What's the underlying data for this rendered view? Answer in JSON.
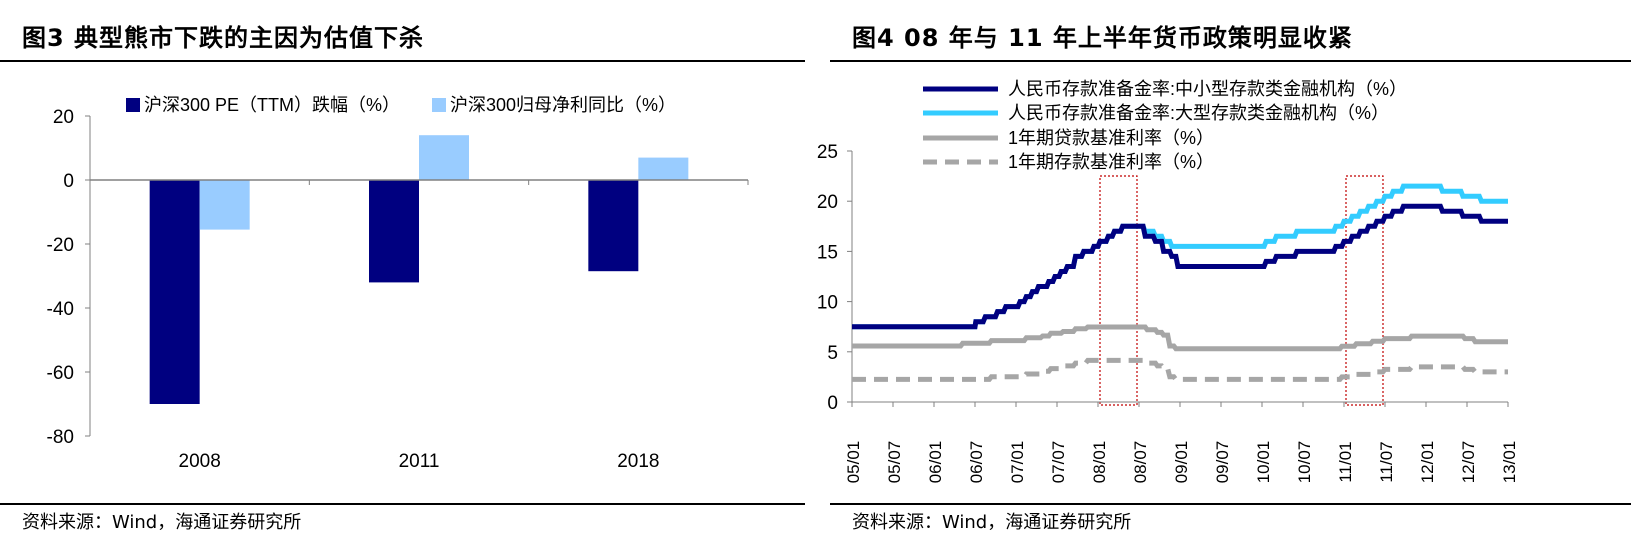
{
  "left": {
    "title": "图3  典型熊市下跌的主因为估值下杀",
    "source": "资料来源：Wind，海通证券研究所",
    "chart_data": {
      "type": "bar",
      "categories": [
        "2008",
        "2011",
        "2018"
      ],
      "series": [
        {
          "name": "沪深300 PE（TTM）跌幅（%）",
          "color": "#000080",
          "values": [
            -70,
            -32,
            -28.5
          ]
        },
        {
          "name": "沪深300归母净利同比（%）",
          "color": "#99CCFF",
          "values": [
            -15.5,
            14,
            7
          ]
        }
      ],
      "yticks": [
        20,
        0,
        -20,
        -40,
        -60,
        -80
      ],
      "ylim": [
        -80,
        20
      ]
    }
  },
  "right": {
    "title": "图4  08 年与 11 年上半年货币政策明显收紧",
    "source": "资料来源：Wind，海通证券研究所",
    "chart_data": {
      "type": "line",
      "xtick_labels": [
        "05/01",
        "05/07",
        "06/01",
        "06/07",
        "07/01",
        "07/07",
        "08/01",
        "08/07",
        "09/01",
        "09/07",
        "10/01",
        "10/07",
        "11/01",
        "11/07",
        "12/01",
        "12/07",
        "13/01"
      ],
      "yticks": [
        25,
        20,
        15,
        10,
        5,
        0
      ],
      "ylim": [
        0,
        25
      ],
      "highlight_ranges": [
        [
          "08/01",
          "08/07"
        ],
        [
          "11/01",
          "11/07"
        ]
      ],
      "series": [
        {
          "name": "人民币存款准备金率:中小型存款类金融机构（%）",
          "color": "#000080",
          "style": "solid",
          "points": [
            [
              0,
              7.5
            ],
            [
              3,
              7.5
            ],
            [
              3.02,
              8
            ],
            [
              3.2,
              8
            ],
            [
              3.25,
              8.5
            ],
            [
              3.5,
              8.5
            ],
            [
              3.55,
              9
            ],
            [
              3.7,
              9
            ],
            [
              3.75,
              9.5
            ],
            [
              4.05,
              9.5
            ],
            [
              4.1,
              10
            ],
            [
              4.2,
              10
            ],
            [
              4.25,
              10.5
            ],
            [
              4.35,
              10.5
            ],
            [
              4.4,
              11
            ],
            [
              4.5,
              11
            ],
            [
              4.55,
              11.5
            ],
            [
              4.75,
              11.5
            ],
            [
              4.8,
              12
            ],
            [
              4.9,
              12
            ],
            [
              4.95,
              12.5
            ],
            [
              5.05,
              12.5
            ],
            [
              5.1,
              13
            ],
            [
              5.2,
              13
            ],
            [
              5.25,
              13.5
            ],
            [
              5.4,
              13.5
            ],
            [
              5.45,
              14.5
            ],
            [
              5.6,
              14.5
            ],
            [
              5.65,
              15
            ],
            [
              5.85,
              15
            ],
            [
              5.9,
              15.5
            ],
            [
              6,
              15.5
            ],
            [
              6.05,
              16
            ],
            [
              6.2,
              16
            ],
            [
              6.25,
              16.5
            ],
            [
              6.35,
              16.5
            ],
            [
              6.4,
              17
            ],
            [
              6.55,
              17
            ],
            [
              6.6,
              17.5
            ],
            [
              7.1,
              17.5
            ],
            [
              7.15,
              16.5
            ],
            [
              7.35,
              16.5
            ],
            [
              7.4,
              16
            ],
            [
              7.55,
              16
            ],
            [
              7.6,
              15
            ],
            [
              7.75,
              15
            ],
            [
              7.8,
              14.5
            ],
            [
              7.9,
              14.5
            ],
            [
              7.95,
              13.5
            ],
            [
              10.05,
              13.5
            ],
            [
              10.1,
              14
            ],
            [
              10.3,
              14
            ],
            [
              10.35,
              14.5
            ],
            [
              10.8,
              14.5
            ],
            [
              10.85,
              15
            ],
            [
              11.75,
              15
            ],
            [
              11.8,
              15.5
            ],
            [
              11.95,
              15.5
            ],
            [
              12,
              16
            ],
            [
              12.15,
              16
            ],
            [
              12.2,
              16.5
            ],
            [
              12.35,
              16.5
            ],
            [
              12.4,
              17
            ],
            [
              12.55,
              17
            ],
            [
              12.6,
              17.5
            ],
            [
              12.75,
              17.5
            ],
            [
              12.8,
              18
            ],
            [
              12.95,
              18
            ],
            [
              13,
              18.5
            ],
            [
              13.15,
              18.5
            ],
            [
              13.2,
              19
            ],
            [
              13.4,
              19
            ],
            [
              13.45,
              19.5
            ],
            [
              14.35,
              19.5
            ],
            [
              14.4,
              19
            ],
            [
              14.85,
              19
            ],
            [
              14.9,
              18.5
            ],
            [
              15.3,
              18.5
            ],
            [
              15.35,
              18
            ],
            [
              16,
              18
            ]
          ]
        },
        {
          "name": "人民币存款准备金率:大型存款类金融机构（%）",
          "color": "#33CCFF",
          "style": "solid",
          "points": [
            [
              0,
              7.5
            ],
            [
              3,
              7.5
            ],
            [
              3.02,
              8
            ],
            [
              3.2,
              8
            ],
            [
              3.25,
              8.5
            ],
            [
              3.5,
              8.5
            ],
            [
              3.55,
              9
            ],
            [
              3.7,
              9
            ],
            [
              3.75,
              9.5
            ],
            [
              4.05,
              9.5
            ],
            [
              4.1,
              10
            ],
            [
              4.2,
              10
            ],
            [
              4.25,
              10.5
            ],
            [
              4.35,
              10.5
            ],
            [
              4.4,
              11
            ],
            [
              4.5,
              11
            ],
            [
              4.55,
              11.5
            ],
            [
              4.75,
              11.5
            ],
            [
              4.8,
              12
            ],
            [
              4.9,
              12
            ],
            [
              4.95,
              12.5
            ],
            [
              5.05,
              12.5
            ],
            [
              5.1,
              13
            ],
            [
              5.2,
              13
            ],
            [
              5.25,
              13.5
            ],
            [
              5.4,
              13.5
            ],
            [
              5.45,
              14.5
            ],
            [
              5.6,
              14.5
            ],
            [
              5.65,
              15
            ],
            [
              5.85,
              15
            ],
            [
              5.9,
              15.5
            ],
            [
              6,
              15.5
            ],
            [
              6.05,
              16
            ],
            [
              6.2,
              16
            ],
            [
              6.25,
              16.5
            ],
            [
              6.35,
              16.5
            ],
            [
              6.4,
              17
            ],
            [
              6.55,
              17
            ],
            [
              6.6,
              17.5
            ],
            [
              7.1,
              17.5
            ],
            [
              7.15,
              17
            ],
            [
              7.35,
              17
            ],
            [
              7.4,
              16.5
            ],
            [
              7.55,
              16.5
            ],
            [
              7.6,
              16
            ],
            [
              7.75,
              16
            ],
            [
              7.8,
              15.5
            ],
            [
              10.05,
              15.5
            ],
            [
              10.1,
              16
            ],
            [
              10.3,
              16
            ],
            [
              10.35,
              16.5
            ],
            [
              10.8,
              16.5
            ],
            [
              10.85,
              17
            ],
            [
              11.75,
              17
            ],
            [
              11.8,
              17.5
            ],
            [
              11.95,
              17.5
            ],
            [
              12,
              18
            ],
            [
              12.15,
              18
            ],
            [
              12.2,
              18.5
            ],
            [
              12.35,
              18.5
            ],
            [
              12.4,
              19
            ],
            [
              12.55,
              19
            ],
            [
              12.6,
              19.5
            ],
            [
              12.75,
              19.5
            ],
            [
              12.8,
              20
            ],
            [
              12.95,
              20
            ],
            [
              13,
              20.5
            ],
            [
              13.15,
              20.5
            ],
            [
              13.2,
              21
            ],
            [
              13.4,
              21
            ],
            [
              13.45,
              21.5
            ],
            [
              14.35,
              21.5
            ],
            [
              14.4,
              21
            ],
            [
              14.85,
              21
            ],
            [
              14.9,
              20.5
            ],
            [
              15.3,
              20.5
            ],
            [
              15.35,
              20
            ],
            [
              16,
              20
            ]
          ]
        },
        {
          "name": "1年期贷款基准利率（%）",
          "color": "#A6A6A6",
          "style": "solid",
          "points": [
            [
              0,
              5.58
            ],
            [
              2.65,
              5.58
            ],
            [
              2.7,
              5.85
            ],
            [
              3.35,
              5.85
            ],
            [
              3.4,
              6.12
            ],
            [
              4.2,
              6.12
            ],
            [
              4.25,
              6.39
            ],
            [
              4.6,
              6.39
            ],
            [
              4.65,
              6.57
            ],
            [
              4.8,
              6.57
            ],
            [
              4.85,
              6.84
            ],
            [
              5.1,
              6.84
            ],
            [
              5.15,
              7.02
            ],
            [
              5.4,
              7.02
            ],
            [
              5.45,
              7.29
            ],
            [
              5.7,
              7.29
            ],
            [
              5.75,
              7.47
            ],
            [
              7.15,
              7.47
            ],
            [
              7.2,
              7.2
            ],
            [
              7.4,
              7.2
            ],
            [
              7.45,
              6.93
            ],
            [
              7.55,
              6.93
            ],
            [
              7.6,
              6.66
            ],
            [
              7.7,
              6.66
            ],
            [
              7.75,
              5.58
            ],
            [
              7.85,
              5.58
            ],
            [
              7.9,
              5.31
            ],
            [
              11.9,
              5.31
            ],
            [
              11.95,
              5.56
            ],
            [
              12.25,
              5.56
            ],
            [
              12.3,
              5.81
            ],
            [
              12.65,
              5.81
            ],
            [
              12.7,
              6.06
            ],
            [
              12.95,
              6.06
            ],
            [
              13,
              6.31
            ],
            [
              13.6,
              6.31
            ],
            [
              13.65,
              6.56
            ],
            [
              14.9,
              6.56
            ],
            [
              14.95,
              6.31
            ],
            [
              15.15,
              6.31
            ],
            [
              15.2,
              6
            ],
            [
              16,
              6
            ]
          ]
        },
        {
          "name": "1年期存款基准利率（%）",
          "color": "#A6A6A6",
          "style": "dashed",
          "points": [
            [
              0,
              2.25
            ],
            [
              3.35,
              2.25
            ],
            [
              3.4,
              2.52
            ],
            [
              4.2,
              2.52
            ],
            [
              4.25,
              2.79
            ],
            [
              4.6,
              2.79
            ],
            [
              4.65,
              3.06
            ],
            [
              4.8,
              3.06
            ],
            [
              4.85,
              3.33
            ],
            [
              5.1,
              3.33
            ],
            [
              5.15,
              3.6
            ],
            [
              5.4,
              3.6
            ],
            [
              5.45,
              3.87
            ],
            [
              5.7,
              3.87
            ],
            [
              5.75,
              4.14
            ],
            [
              7.15,
              4.14
            ],
            [
              7.2,
              3.87
            ],
            [
              7.4,
              3.87
            ],
            [
              7.45,
              3.6
            ],
            [
              7.55,
              3.6
            ],
            [
              7.6,
              3.33
            ],
            [
              7.7,
              3.33
            ],
            [
              7.75,
              2.52
            ],
            [
              7.85,
              2.52
            ],
            [
              7.9,
              2.25
            ],
            [
              11.9,
              2.25
            ],
            [
              11.95,
              2.5
            ],
            [
              12.25,
              2.5
            ],
            [
              12.3,
              2.75
            ],
            [
              12.65,
              2.75
            ],
            [
              12.7,
              3
            ],
            [
              12.95,
              3
            ],
            [
              13,
              3.25
            ],
            [
              13.6,
              3.25
            ],
            [
              13.65,
              3.5
            ],
            [
              14.9,
              3.5
            ],
            [
              14.95,
              3.25
            ],
            [
              15.15,
              3.25
            ],
            [
              15.2,
              3
            ],
            [
              16,
              3
            ]
          ]
        }
      ]
    }
  }
}
